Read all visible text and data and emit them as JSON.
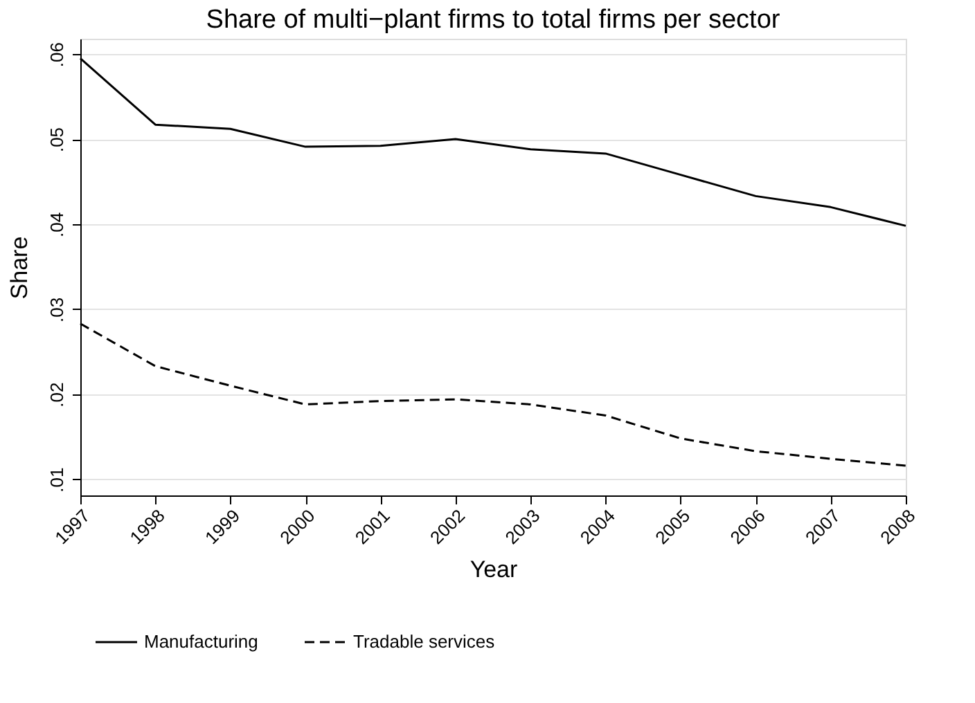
{
  "chart_data": {
    "type": "line",
    "title": "Share of multi−plant firms to total firms per sector",
    "xlabel": "Year",
    "ylabel": "Share",
    "x": [
      1997,
      1998,
      1999,
      2000,
      2001,
      2002,
      2003,
      2004,
      2005,
      2006,
      2007,
      2008
    ],
    "series": [
      {
        "name": "Manufacturing",
        "color": "#000000",
        "line_style": "solid",
        "values": [
          0.0595,
          0.0517,
          0.0512,
          0.0491,
          0.0492,
          0.05,
          0.0488,
          0.0483,
          0.0458,
          0.0433,
          0.042,
          0.0398
        ]
      },
      {
        "name": "Tradable services",
        "color": "#000000",
        "line_style": "dashed",
        "values": [
          0.0283,
          0.0233,
          0.021,
          0.0188,
          0.0192,
          0.0194,
          0.0188,
          0.0175,
          0.0148,
          0.0133,
          0.0124,
          0.0116
        ]
      }
    ],
    "xlim": [
      1997,
      2008
    ],
    "xticks": [
      1997,
      1998,
      1999,
      2000,
      2001,
      2002,
      2003,
      2004,
      2005,
      2006,
      2007,
      2008
    ],
    "ylim": [
      0.0081,
      0.0618
    ],
    "yticks": [
      {
        "value": 0.01,
        "label": ".01"
      },
      {
        "value": 0.02,
        "label": ".02"
      },
      {
        "value": 0.03,
        "label": ".03"
      },
      {
        "value": 0.04,
        "label": ".04"
      },
      {
        "value": 0.05,
        "label": ".05"
      },
      {
        "value": 0.06,
        "label": ".06"
      }
    ],
    "grid": "y",
    "legend": "bottom",
    "marker": "none"
  }
}
